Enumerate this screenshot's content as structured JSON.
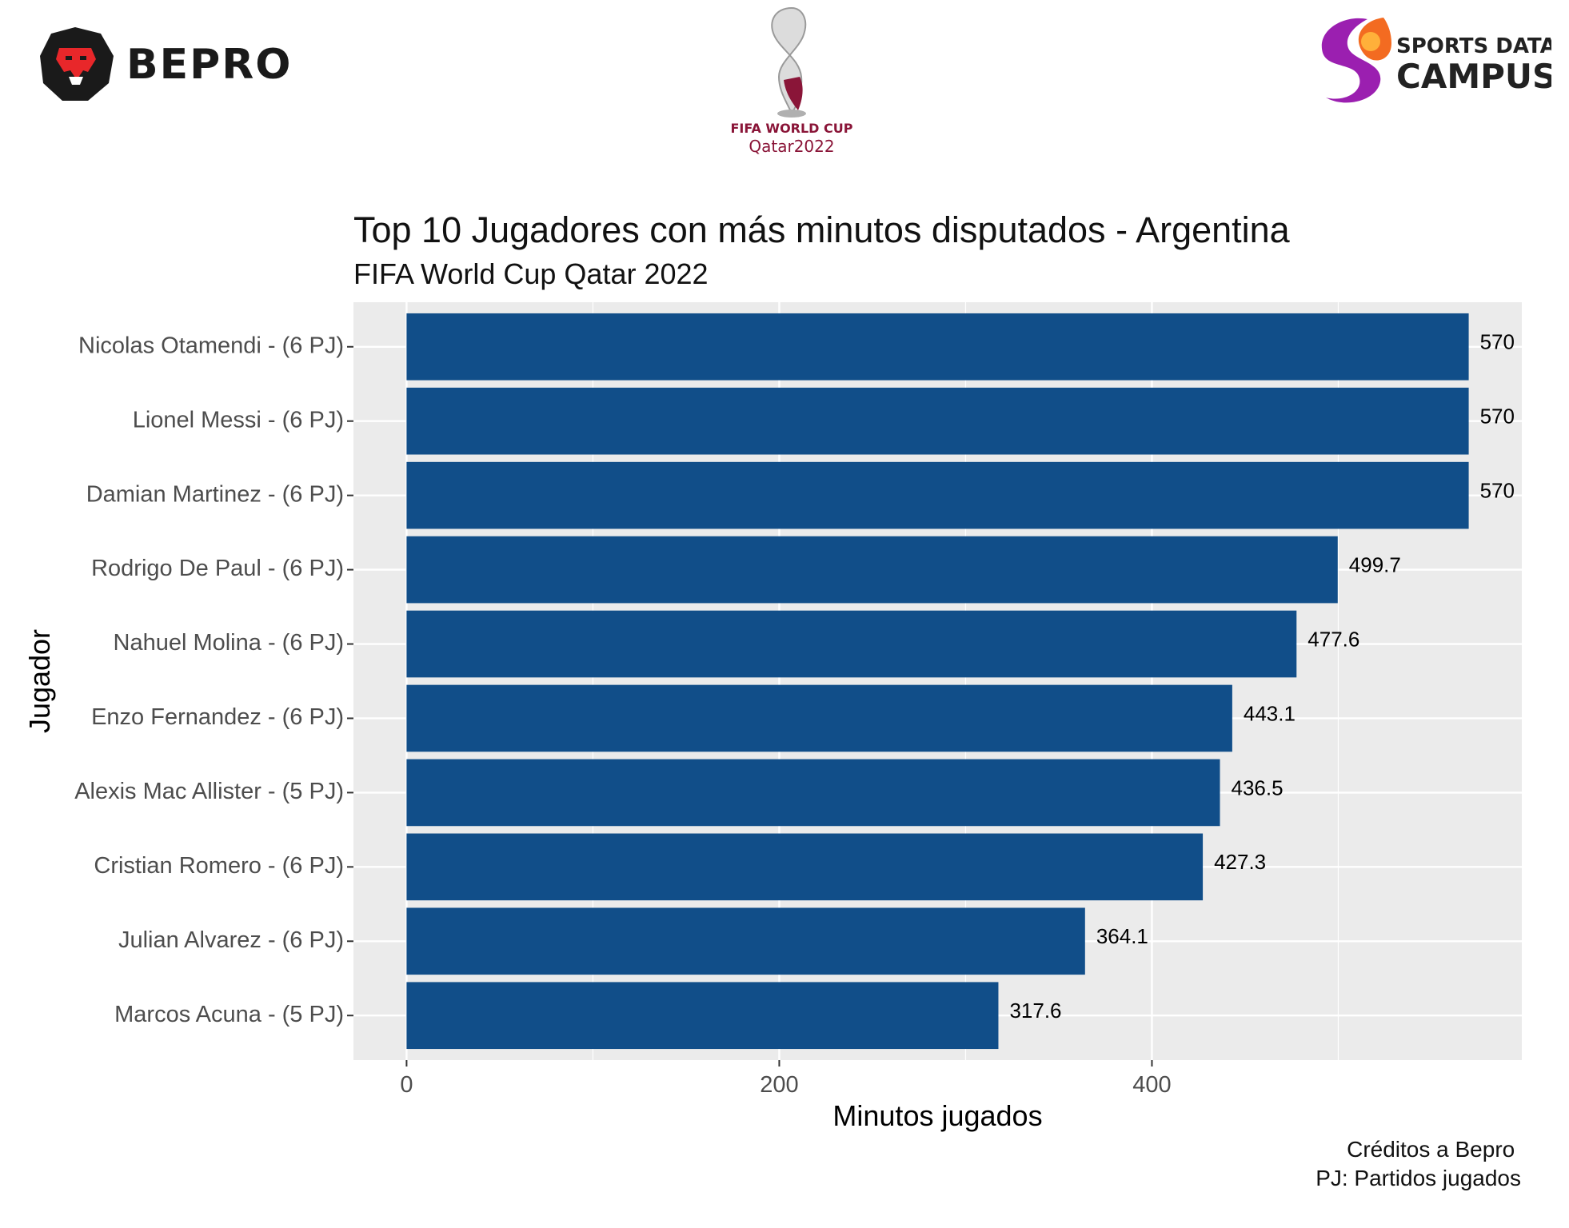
{
  "logos": {
    "bepro": {
      "text": "BEPRO",
      "icon": "lion-head-icon"
    },
    "world_cup": {
      "line1": "FIFA WORLD CUP",
      "line2": "Qatar2022",
      "icon": "world-cup-trophy-icon"
    },
    "sports_data_campus": {
      "line1": "SPORTS DATA",
      "line2": "CAMPUS",
      "icon": "swirl-s-icon"
    }
  },
  "caption": {
    "line1": "Créditos a Bepro ",
    "line2": "PJ: Partidos jugados"
  },
  "colors": {
    "bar": "#114e89",
    "panel": "#ebebeb",
    "grid": "#ffffff",
    "bepro_red": "#e8272a",
    "wc_maroon": "#8a1538"
  },
  "chart_data": {
    "type": "bar",
    "orientation": "horizontal",
    "title": "Top 10 Jugadores con más minutos disputados - Argentina",
    "subtitle": "FIFA World Cup Qatar 2022",
    "xlabel": "Minutos jugados",
    "ylabel": "Jugador",
    "xlim": [
      -28.5,
      598.5
    ],
    "xticks": [
      0,
      200,
      400
    ],
    "grid": true,
    "legend": "none",
    "categories": [
      "Nicolas Otamendi - (6 PJ)",
      "Lionel Messi - (6 PJ)",
      "Damian Martinez - (6 PJ)",
      "Rodrigo De Paul - (6 PJ)",
      "Nahuel Molina - (6 PJ)",
      "Enzo Fernandez - (6 PJ)",
      "Alexis Mac Allister - (5 PJ)",
      "Cristian Romero - (6 PJ)",
      "Julian Alvarez - (6 PJ)",
      "Marcos Acuna - (5 PJ)"
    ],
    "values": [
      570,
      570,
      570,
      499.7,
      477.6,
      443.1,
      436.5,
      427.3,
      364.1,
      317.6
    ],
    "data_labels": [
      "570",
      "570",
      "570",
      "499.7",
      "477.6",
      "443.1",
      "436.5",
      "427.3",
      "364.1",
      "317.6"
    ]
  }
}
